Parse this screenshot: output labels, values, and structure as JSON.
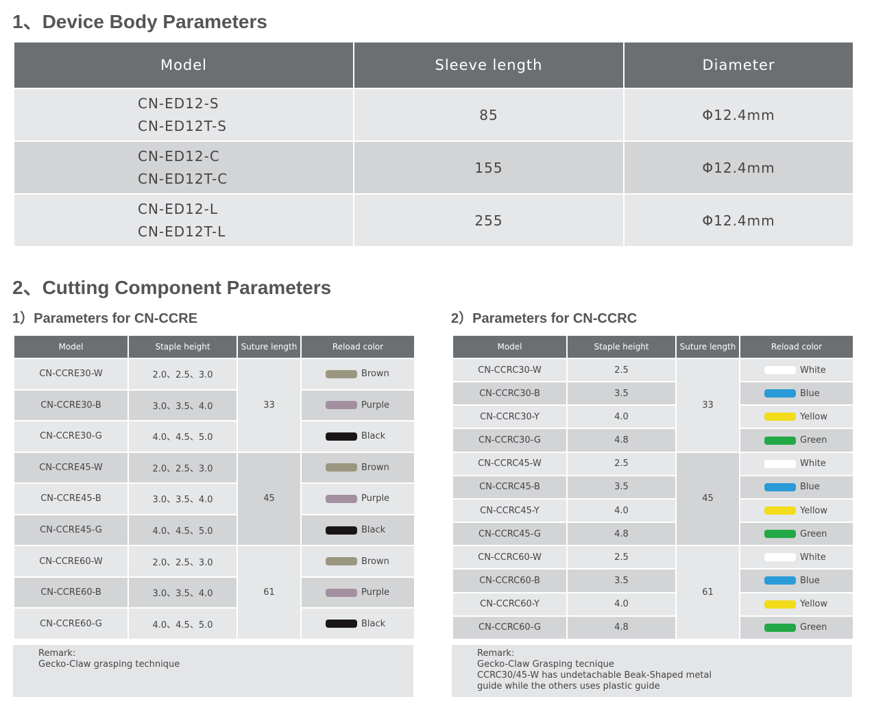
{
  "section1": {
    "title": "1、Device Body Parameters",
    "headers": [
      "Model",
      "Sleeve length",
      "Diameter"
    ],
    "rows": [
      {
        "models": [
          "CN-ED12-S",
          "CN-ED12T-S"
        ],
        "sleeve_length": 85,
        "diameter": "Φ12.4mm"
      },
      {
        "models": [
          "CN-ED12-C",
          "CN-ED12T-C"
        ],
        "sleeve_length": 155,
        "diameter": "Φ12.4mm"
      },
      {
        "models": [
          "CN-ED12-L",
          "CN-ED12T-L"
        ],
        "sleeve_length": 255,
        "diameter": "Φ12.4mm"
      }
    ]
  },
  "section2": {
    "title": "2、Cutting Component Parameters",
    "tables": [
      {
        "title": "1）Parameters for CN-CCRE",
        "headers": [
          "Model",
          "Staple height",
          "Suture length",
          "Reload color"
        ],
        "groups": [
          {
            "suture_length": 33,
            "rows": [
              {
                "model": "CN-CCRE30-W",
                "staple_height": "2.0、2.5、3.0",
                "color": "Brown",
                "swatch": "#9a9680"
              },
              {
                "model": "CN-CCRE30-B",
                "staple_height": "3.0、3.5、4.0",
                "color": "Purple",
                "swatch": "#a38fa0"
              },
              {
                "model": "CN-CCRE30-G",
                "staple_height": "4.0、4.5、5.0",
                "color": "Black",
                "swatch": "#1a1616"
              }
            ]
          },
          {
            "suture_length": 45,
            "rows": [
              {
                "model": "CN-CCRE45-W",
                "staple_height": "2.0、2.5、3.0",
                "color": "Brown",
                "swatch": "#9a9680"
              },
              {
                "model": "CN-CCRE45-B",
                "staple_height": "3.0、3.5、4.0",
                "color": "Purple",
                "swatch": "#a38fa0"
              },
              {
                "model": "CN-CCRE45-G",
                "staple_height": "4.0、4.5、5.0",
                "color": "Black",
                "swatch": "#1a1616"
              }
            ]
          },
          {
            "suture_length": 61,
            "rows": [
              {
                "model": "CN-CCRE60-W",
                "staple_height": "2.0、2.5、3.0",
                "color": "Brown",
                "swatch": "#9a9680"
              },
              {
                "model": "CN-CCRE60-B",
                "staple_height": "3.0、3.5、4.0",
                "color": "Purple",
                "swatch": "#a38fa0"
              },
              {
                "model": "CN-CCRE60-G",
                "staple_height": "4.0、4.5、5.0",
                "color": "Black",
                "swatch": "#1a1616"
              }
            ]
          }
        ],
        "remark": {
          "label": "Remark:",
          "lines": [
            "Gecko-Claw grasping technique"
          ]
        }
      },
      {
        "title": "2）Parameters for CN-CCRC",
        "headers": [
          "Model",
          "Staple height",
          "Suture length",
          "Reload color"
        ],
        "groups": [
          {
            "suture_length": 33,
            "rows": [
              {
                "model": "CN-CCRC30-W",
                "staple_height": "2.5",
                "color": "White",
                "swatch": "#ffffff"
              },
              {
                "model": "CN-CCRC30-B",
                "staple_height": "3.5",
                "color": "Blue",
                "swatch": "#2a9bd8"
              },
              {
                "model": "CN-CCRC30-Y",
                "staple_height": "4.0",
                "color": "Yellow",
                "swatch": "#f2dc1c"
              },
              {
                "model": "CN-CCRC30-G",
                "staple_height": "4.8",
                "color": "Green",
                "swatch": "#22a845"
              }
            ]
          },
          {
            "suture_length": 45,
            "rows": [
              {
                "model": "CN-CCRC45-W",
                "staple_height": "2.5",
                "color": "White",
                "swatch": "#ffffff"
              },
              {
                "model": "CN-CCRC45-B",
                "staple_height": "3.5",
                "color": "Blue",
                "swatch": "#2a9bd8"
              },
              {
                "model": "CN-CCRC45-Y",
                "staple_height": "4.0",
                "color": "Yellow",
                "swatch": "#f2dc1c"
              },
              {
                "model": "CN-CCRC45-G",
                "staple_height": "4.8",
                "color": "Green",
                "swatch": "#22a845"
              }
            ]
          },
          {
            "suture_length": 61,
            "rows": [
              {
                "model": "CN-CCRC60-W",
                "staple_height": "2.5",
                "color": "White",
                "swatch": "#ffffff"
              },
              {
                "model": "CN-CCRC60-B",
                "staple_height": "3.5",
                "color": "Blue",
                "swatch": "#2a9bd8"
              },
              {
                "model": "CN-CCRC60-Y",
                "staple_height": "4.0",
                "color": "Yellow",
                "swatch": "#f2dc1c"
              },
              {
                "model": "CN-CCRC60-G",
                "staple_height": "4.8",
                "color": "Green",
                "swatch": "#22a845"
              }
            ]
          }
        ],
        "remark": {
          "label": "Remark:",
          "lines": [
            "Gecko-Claw Grasping tecnique",
            "CCRC30/45-W has undetachable Beak-Shaped metal",
            "guide while the others uses plastic guide"
          ]
        }
      }
    ]
  }
}
